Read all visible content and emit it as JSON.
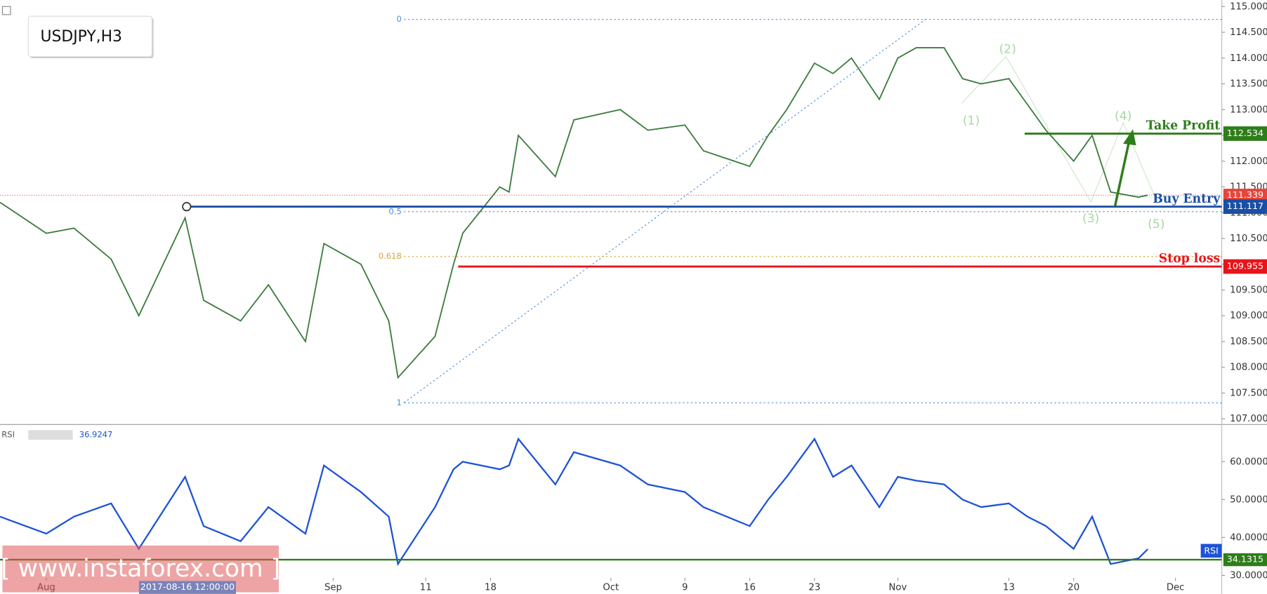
{
  "chart_data": [
    {
      "type": "line",
      "title": "USDJPY,H3",
      "x": [
        "2017-07-27",
        "2017-08-01",
        "2017-08-04",
        "2017-08-08",
        "2017-08-11",
        "2017-08-16",
        "2017-08-18",
        "2017-08-22",
        "2017-08-25",
        "2017-08-29",
        "2017-08-31",
        "2017-09-04",
        "2017-09-07",
        "2017-09-08",
        "2017-09-12",
        "2017-09-14",
        "2017-09-15",
        "2017-09-19",
        "2017-09-20",
        "2017-09-21",
        "2017-09-25",
        "2017-09-27",
        "2017-10-02",
        "2017-10-05",
        "2017-10-09",
        "2017-10-11",
        "2017-10-16",
        "2017-10-18",
        "2017-10-20",
        "2017-10-23",
        "2017-10-25",
        "2017-10-27",
        "2017-10-30",
        "2017-11-01",
        "2017-11-03",
        "2017-11-06",
        "2017-11-08",
        "2017-11-10",
        "2017-11-13",
        "2017-11-15",
        "2017-11-17",
        "2017-11-20",
        "2017-11-22",
        "2017-11-24",
        "2017-11-27",
        "2017-11-28"
      ],
      "xlim": [
        "2017-07-27",
        "2017-12-06"
      ],
      "series": [
        {
          "name": "USDJPY",
          "color": "#3d7d3d",
          "values": [
            111.2,
            110.6,
            110.7,
            110.1,
            109.0,
            110.9,
            109.3,
            108.9,
            109.6,
            108.5,
            110.4,
            110.0,
            108.9,
            107.8,
            108.6,
            110.0,
            110.6,
            111.5,
            111.4,
            112.5,
            111.7,
            112.8,
            113.0,
            112.6,
            112.7,
            112.2,
            111.9,
            112.5,
            113.0,
            113.9,
            113.7,
            114.0,
            113.2,
            114.0,
            114.2,
            114.2,
            113.6,
            113.5,
            113.6,
            113.1,
            112.6,
            112.0,
            112.5,
            111.4,
            111.3,
            111.339
          ]
        }
      ],
      "ylim": [
        106.906,
        115.125
      ],
      "yticks": [
        {
          "value": 107,
          "label": "107.000"
        },
        {
          "value": 107.5,
          "label": "107.500"
        },
        {
          "value": 108,
          "label": "108.000"
        },
        {
          "value": 108.5,
          "label": "108.500"
        },
        {
          "value": 109,
          "label": "109.000"
        },
        {
          "value": 109.5,
          "label": "109.500"
        },
        {
          "value": 110,
          "label": "110.000"
        },
        {
          "value": 110.5,
          "label": "110.500"
        },
        {
          "value": 111,
          "label": "111.000"
        },
        {
          "value": 111.5,
          "label": "111.500"
        },
        {
          "value": 112,
          "label": "112.000"
        },
        {
          "value": 112.5,
          "label": "112.500"
        },
        {
          "value": 113,
          "label": "113.000"
        },
        {
          "value": 113.5,
          "label": "113.500"
        },
        {
          "value": 114,
          "label": "114.000"
        },
        {
          "value": 114.5,
          "label": "114.500"
        },
        {
          "value": 115,
          "label": "115.000"
        }
      ],
      "last_price": 111.339,
      "levels": [
        {
          "label": "Take Profit",
          "value": 112.534,
          "color": "#2e7d1a"
        },
        {
          "label": "Buy Entry",
          "value": 111.117,
          "color": "#1a4fa3"
        },
        {
          "label": "Stop loss",
          "value": 109.955,
          "color": "#e8141b"
        }
      ],
      "fib_levels": [
        {
          "label": "0",
          "value": 114.75,
          "color": "#4a8fd8"
        },
        {
          "label": "0.5",
          "value": 111.02,
          "color": "#4a8fd8"
        },
        {
          "label": "0.618",
          "value": 110.15,
          "color": "#d4a437"
        },
        {
          "label": "1",
          "value": 107.31,
          "color": "#4a8fd8"
        }
      ],
      "waves": [
        "(1)",
        "(2)",
        "(3)",
        "(4)",
        "(5)"
      ],
      "watermark": "[ www.instaforex.com ]",
      "crosshair_label": "2017-08-16 12:00:00"
    },
    {
      "type": "line",
      "title": "RSI",
      "current": 36.9247,
      "badge": "RSI",
      "x": [
        "2017-07-27",
        "2017-08-01",
        "2017-08-04",
        "2017-08-08",
        "2017-08-11",
        "2017-08-16",
        "2017-08-18",
        "2017-08-22",
        "2017-08-25",
        "2017-08-29",
        "2017-08-31",
        "2017-09-04",
        "2017-09-07",
        "2017-09-08",
        "2017-09-12",
        "2017-09-14",
        "2017-09-15",
        "2017-09-19",
        "2017-09-20",
        "2017-09-21",
        "2017-09-25",
        "2017-09-27",
        "2017-10-02",
        "2017-10-05",
        "2017-10-09",
        "2017-10-11",
        "2017-10-16",
        "2017-10-18",
        "2017-10-20",
        "2017-10-23",
        "2017-10-25",
        "2017-10-27",
        "2017-10-30",
        "2017-11-01",
        "2017-11-03",
        "2017-11-06",
        "2017-11-08",
        "2017-11-10",
        "2017-11-13",
        "2017-11-15",
        "2017-11-17",
        "2017-11-20",
        "2017-11-22",
        "2017-11-24",
        "2017-11-27",
        "2017-11-28"
      ],
      "xlim": [
        "2017-07-27",
        "2017-12-06"
      ],
      "xticks": [
        {
          "value": "2017-08-01",
          "label": "Aug"
        },
        {
          "value": "2017-09-01",
          "label": "Sep"
        },
        {
          "value": "2017-09-11",
          "label": "11"
        },
        {
          "value": "2017-09-18",
          "label": "18"
        },
        {
          "value": "2017-10-01",
          "label": "Oct"
        },
        {
          "value": "2017-10-09",
          "label": "9"
        },
        {
          "value": "2017-10-16",
          "label": "16"
        },
        {
          "value": "2017-10-23",
          "label": "23"
        },
        {
          "value": "2017-11-01",
          "label": "Nov"
        },
        {
          "value": "2017-11-13",
          "label": "13"
        },
        {
          "value": "2017-11-20",
          "label": "20"
        },
        {
          "value": "2017-12-01",
          "label": "Dec"
        }
      ],
      "series": [
        {
          "name": "RSI",
          "color": "#1e53d6",
          "values": [
            45.5,
            41,
            45.5,
            49,
            37,
            56,
            43,
            39,
            48,
            41,
            59,
            52,
            45.5,
            33,
            48,
            58,
            60,
            58,
            59,
            66,
            54,
            62.5,
            59,
            54,
            52,
            48,
            43,
            50,
            56,
            66,
            56,
            59,
            48,
            56,
            55,
            54,
            50,
            48,
            49,
            45.5,
            43,
            37,
            45.5,
            33,
            34.5,
            36.9247
          ]
        }
      ],
      "ylim": [
        25.1,
        69.6
      ],
      "yticks": [
        {
          "value": 30,
          "label": "30.0000"
        },
        {
          "value": 40,
          "label": "40.0000"
        },
        {
          "value": 50,
          "label": "50.0000"
        },
        {
          "value": 60,
          "label": "60.0000"
        }
      ],
      "level": {
        "value": 34.1315,
        "color": "#2e7d1a"
      }
    }
  ]
}
